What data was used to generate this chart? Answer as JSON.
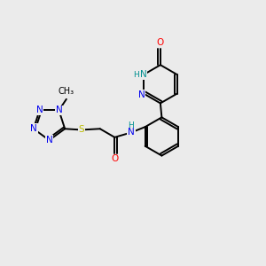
{
  "bg_color": "#ebebeb",
  "bond_color": "#000000",
  "N_color": "#0000ee",
  "O_color": "#ff0000",
  "S_color": "#bbbb00",
  "NH_color": "#009090",
  "lw": 1.4,
  "figsize": [
    3.0,
    3.0
  ],
  "dpi": 100,
  "xlim": [
    0,
    10
  ],
  "ylim": [
    0,
    10
  ]
}
